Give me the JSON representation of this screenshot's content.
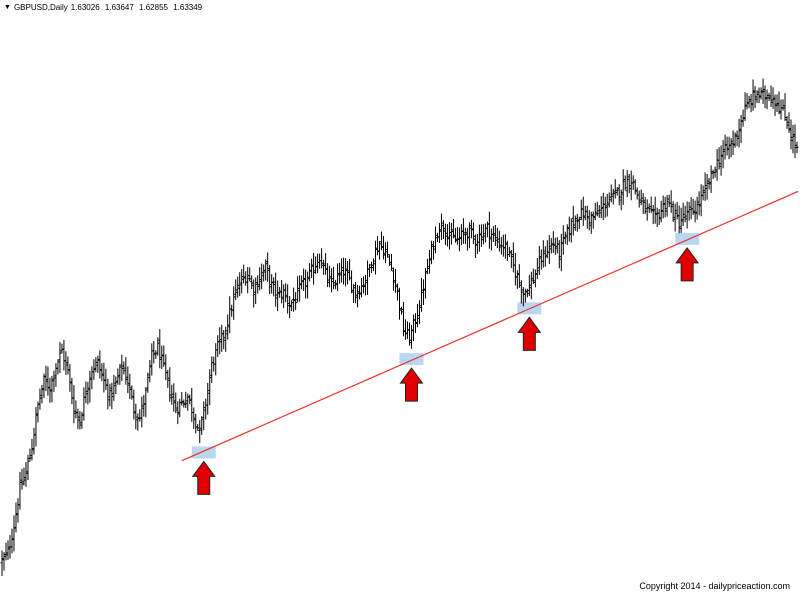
{
  "header": {
    "symbol": "GBPUSD,Daily",
    "ohlc": [
      "1.63026",
      "1.63647",
      "1.62855",
      "1.63349"
    ]
  },
  "footer": {
    "copyright": "Copyright 2014 - dailypriceaction.com"
  },
  "colors": {
    "bars": "#000000",
    "trendline": "#e8332a",
    "arrow_fill": "#e00000",
    "arrow_stroke": "#222222",
    "touch_highlight": "#aed0ee"
  },
  "chart_data": {
    "type": "ohlc",
    "symbol": "GBPUSD",
    "timeframe": "Daily",
    "last_bar": {
      "open": 1.63026,
      "high": 1.63647,
      "low": 1.62855,
      "close": 1.63349
    },
    "ylim": [
      1.466,
      1.651
    ],
    "grid": false,
    "close_path": [
      [
        0,
        1.472
      ],
      [
        6,
        1.475
      ],
      [
        12,
        1.484
      ],
      [
        18,
        1.496
      ],
      [
        24,
        1.501
      ],
      [
        30,
        1.51
      ],
      [
        36,
        1.523
      ],
      [
        42,
        1.531
      ],
      [
        48,
        1.529
      ],
      [
        54,
        1.536
      ],
      [
        60,
        1.541
      ],
      [
        66,
        1.534
      ],
      [
        72,
        1.522
      ],
      [
        78,
        1.518
      ],
      [
        84,
        1.528
      ],
      [
        90,
        1.535
      ],
      [
        96,
        1.537
      ],
      [
        102,
        1.531
      ],
      [
        108,
        1.526
      ],
      [
        114,
        1.53
      ],
      [
        120,
        1.536
      ],
      [
        126,
        1.531
      ],
      [
        132,
        1.522
      ],
      [
        138,
        1.519
      ],
      [
        144,
        1.527
      ],
      [
        150,
        1.539
      ],
      [
        156,
        1.542
      ],
      [
        162,
        1.535
      ],
      [
        168,
        1.528
      ],
      [
        174,
        1.522
      ],
      [
        180,
        1.524
      ],
      [
        186,
        1.526
      ],
      [
        192,
        1.52
      ],
      [
        198,
        1.514
      ],
      [
        204,
        1.524
      ],
      [
        210,
        1.536
      ],
      [
        216,
        1.542
      ],
      [
        222,
        1.546
      ],
      [
        228,
        1.553
      ],
      [
        234,
        1.56
      ],
      [
        240,
        1.564
      ],
      [
        246,
        1.566
      ],
      [
        252,
        1.561
      ],
      [
        258,
        1.565
      ],
      [
        264,
        1.568
      ],
      [
        270,
        1.562
      ],
      [
        276,
        1.559
      ],
      [
        282,
        1.56
      ],
      [
        288,
        1.556
      ],
      [
        294,
        1.558
      ],
      [
        300,
        1.562
      ],
      [
        306,
        1.564
      ],
      [
        312,
        1.568
      ],
      [
        318,
        1.572
      ],
      [
        324,
        1.566
      ],
      [
        330,
        1.562
      ],
      [
        336,
        1.565
      ],
      [
        342,
        1.567
      ],
      [
        348,
        1.564
      ],
      [
        354,
        1.56
      ],
      [
        360,
        1.562
      ],
      [
        366,
        1.566
      ],
      [
        372,
        1.572
      ],
      [
        378,
        1.576
      ],
      [
        384,
        1.573
      ],
      [
        390,
        1.568
      ],
      [
        396,
        1.56
      ],
      [
        402,
        1.548
      ],
      [
        408,
        1.545
      ],
      [
        414,
        1.551
      ],
      [
        420,
        1.559
      ],
      [
        426,
        1.568
      ],
      [
        432,
        1.576
      ],
      [
        438,
        1.582
      ],
      [
        444,
        1.581
      ],
      [
        450,
        1.578
      ],
      [
        456,
        1.577
      ],
      [
        462,
        1.579
      ],
      [
        468,
        1.58
      ],
      [
        474,
        1.577
      ],
      [
        480,
        1.579
      ],
      [
        486,
        1.581
      ],
      [
        492,
        1.578
      ],
      [
        498,
        1.576
      ],
      [
        504,
        1.575
      ],
      [
        510,
        1.57
      ],
      [
        516,
        1.565
      ],
      [
        522,
        1.56
      ],
      [
        528,
        1.562
      ],
      [
        534,
        1.566
      ],
      [
        540,
        1.571
      ],
      [
        546,
        1.574
      ],
      [
        552,
        1.576
      ],
      [
        558,
        1.573
      ],
      [
        564,
        1.578
      ],
      [
        570,
        1.582
      ],
      [
        576,
        1.585
      ],
      [
        582,
        1.586
      ],
      [
        588,
        1.584
      ],
      [
        594,
        1.585
      ],
      [
        600,
        1.587
      ],
      [
        606,
        1.59
      ],
      [
        612,
        1.591
      ],
      [
        618,
        1.593
      ],
      [
        624,
        1.596
      ],
      [
        630,
        1.597
      ],
      [
        636,
        1.592
      ],
      [
        642,
        1.588
      ],
      [
        648,
        1.586
      ],
      [
        654,
        1.584
      ],
      [
        660,
        1.587
      ],
      [
        666,
        1.59
      ],
      [
        672,
        1.586
      ],
      [
        678,
        1.583
      ],
      [
        684,
        1.585
      ],
      [
        690,
        1.586
      ],
      [
        696,
        1.588
      ],
      [
        702,
        1.592
      ],
      [
        708,
        1.596
      ],
      [
        714,
        1.601
      ],
      [
        720,
        1.605
      ],
      [
        726,
        1.607
      ],
      [
        732,
        1.609
      ],
      [
        738,
        1.614
      ],
      [
        744,
        1.62
      ],
      [
        750,
        1.623
      ],
      [
        756,
        1.625
      ],
      [
        762,
        1.624
      ],
      [
        768,
        1.625
      ],
      [
        774,
        1.623
      ],
      [
        780,
        1.62
      ],
      [
        786,
        1.616
      ],
      [
        792,
        1.61
      ],
      [
        797,
        1.606
      ]
    ],
    "annotations": {
      "trendline": {
        "type": "support",
        "from": [
          180,
          1.505
        ],
        "to": [
          797,
          1.593
        ]
      },
      "touches": [
        {
          "bar": 202,
          "price": 1.5077
        },
        {
          "bar": 410,
          "price": 1.5382
        },
        {
          "bar": 528,
          "price": 1.5548
        },
        {
          "bar": 686,
          "price": 1.5775
        }
      ]
    }
  }
}
